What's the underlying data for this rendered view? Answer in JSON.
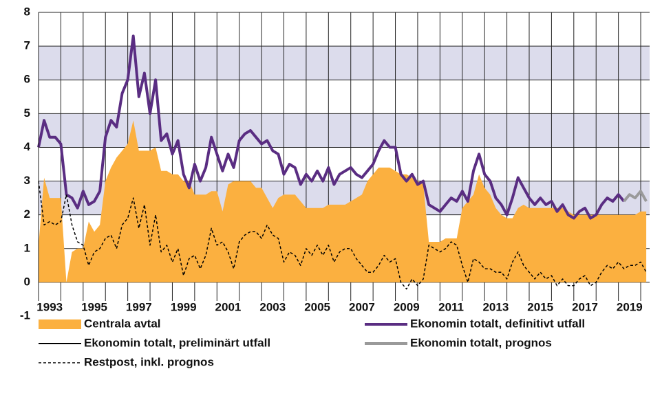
{
  "chart_data": {
    "type": "line",
    "x": [
      1993,
      1993.25,
      1993.5,
      1993.75,
      1994,
      1994.25,
      1994.5,
      1994.75,
      1995,
      1995.25,
      1995.5,
      1995.75,
      1996,
      1996.25,
      1996.5,
      1996.75,
      1997,
      1997.25,
      1997.5,
      1997.75,
      1998,
      1998.25,
      1998.5,
      1998.75,
      1999,
      1999.25,
      1999.5,
      1999.75,
      2000,
      2000.25,
      2000.5,
      2000.75,
      2001,
      2001.25,
      2001.5,
      2001.75,
      2002,
      2002.25,
      2002.5,
      2002.75,
      2003,
      2003.25,
      2003.5,
      2003.75,
      2004,
      2004.25,
      2004.5,
      2004.75,
      2005,
      2005.25,
      2005.5,
      2005.75,
      2006,
      2006.25,
      2006.5,
      2006.75,
      2007,
      2007.25,
      2007.5,
      2007.75,
      2008,
      2008.25,
      2008.5,
      2008.75,
      2009,
      2009.25,
      2009.5,
      2009.75,
      2010,
      2010.25,
      2010.5,
      2010.75,
      2011,
      2011.25,
      2011.5,
      2011.75,
      2012,
      2012.25,
      2012.5,
      2012.75,
      2013,
      2013.25,
      2013.5,
      2013.75,
      2014,
      2014.25,
      2014.5,
      2014.75,
      2015,
      2015.25,
      2015.5,
      2015.75,
      2016,
      2016.25,
      2016.5,
      2016.75,
      2017,
      2017.25,
      2017.5,
      2017.75,
      2018,
      2018.25,
      2018.5,
      2018.75,
      2019,
      2019.25,
      2019.5,
      2019.75,
      2020,
      2020.25
    ],
    "xlim": [
      1993,
      2020.4
    ],
    "xticks": [
      1993,
      1995,
      1997,
      1999,
      2001,
      2003,
      2005,
      2007,
      2009,
      2011,
      2013,
      2015,
      2017,
      2019
    ],
    "xgrid": [
      1993,
      1994,
      1995,
      1996,
      1997,
      1998,
      1999,
      2000,
      2001,
      2002,
      2003,
      2004,
      2005,
      2006,
      2007,
      2008,
      2009,
      2010,
      2011,
      2012,
      2013,
      2014,
      2015,
      2016,
      2017,
      2018,
      2019,
      2020
    ],
    "ylim": [
      -1,
      8
    ],
    "yticks": [
      -1,
      0,
      1,
      2,
      3,
      4,
      5,
      6,
      7,
      8
    ],
    "bands": [
      [
        2,
        3
      ],
      [
        4,
        5
      ],
      [
        6,
        7
      ]
    ],
    "band_color": "#dcdcec",
    "series": [
      {
        "name": "Centrala avtal",
        "color": "#fbb040",
        "kind": "area",
        "values": [
          1.1,
          3.1,
          2.5,
          2.5,
          2.5,
          0.0,
          0.9,
          1.0,
          1.0,
          1.8,
          1.5,
          1.7,
          3.0,
          3.4,
          3.7,
          3.9,
          4.1,
          4.8,
          3.9,
          3.9,
          3.9,
          4.0,
          3.3,
          3.3,
          3.2,
          3.2,
          3.0,
          3.0,
          2.6,
          2.6,
          2.6,
          2.7,
          2.7,
          2.1,
          2.9,
          3.0,
          3.0,
          3.0,
          3.0,
          2.8,
          2.8,
          2.5,
          2.2,
          2.5,
          2.6,
          2.6,
          2.6,
          2.4,
          2.2,
          2.2,
          2.2,
          2.2,
          2.3,
          2.3,
          2.3,
          2.3,
          2.4,
          2.5,
          2.6,
          3.0,
          3.2,
          3.4,
          3.4,
          3.4,
          3.3,
          3.2,
          3.2,
          3.1,
          3.0,
          2.9,
          1.2,
          1.2,
          1.2,
          1.3,
          1.3,
          1.3,
          2.2,
          2.4,
          2.6,
          3.2,
          2.8,
          2.6,
          2.2,
          2.0,
          1.9,
          1.9,
          2.2,
          2.3,
          2.2,
          2.2,
          2.2,
          2.2,
          2.2,
          2.2,
          2.2,
          2.1,
          2.0,
          2.0,
          2.0,
          2.0,
          2.0,
          2.0,
          2.0,
          2.0,
          2.0,
          2.0,
          2.0,
          2.0,
          2.1,
          2.1
        ]
      },
      {
        "name": "Ekonomin totalt, definitivt utfall",
        "color": "#5a2d82",
        "kind": "line",
        "width": 4,
        "values": [
          4.0,
          4.8,
          4.3,
          4.3,
          4.1,
          2.6,
          2.5,
          2.2,
          2.7,
          2.3,
          2.4,
          2.7,
          4.3,
          4.8,
          4.6,
          5.6,
          6.0,
          7.3,
          5.5,
          6.2,
          5.0,
          6.0,
          4.2,
          4.4,
          3.8,
          4.2,
          3.2,
          2.8,
          3.5,
          3.0,
          3.4,
          4.3,
          3.8,
          3.3,
          3.8,
          3.4,
          4.2,
          4.4,
          4.5,
          4.3,
          4.1,
          4.2,
          3.9,
          3.8,
          3.2,
          3.5,
          3.4,
          2.9,
          3.2,
          3.0,
          3.3,
          3.0,
          3.4,
          2.9,
          3.2,
          3.3,
          3.4,
          3.2,
          3.1,
          3.3,
          3.5,
          3.9,
          4.2,
          4.0,
          4.0,
          3.2,
          3.0,
          3.2,
          2.9,
          3.0,
          2.3,
          2.2,
          2.1,
          2.3,
          2.5,
          2.4,
          2.7,
          2.4,
          3.3,
          3.8,
          3.2,
          3.0,
          2.5,
          2.3,
          2.0,
          2.5,
          3.1,
          2.8,
          2.5,
          2.3,
          2.5,
          2.3,
          2.4,
          2.1,
          2.3,
          2.0,
          1.9,
          2.1,
          2.2,
          1.9,
          2.0,
          2.3,
          2.5,
          2.4,
          2.6,
          2.4,
          null,
          null,
          null,
          null
        ]
      },
      {
        "name": "Ekonomin totalt, preliminärt utfall",
        "color": "#000000",
        "kind": "line",
        "width": 2,
        "values": [
          null,
          null,
          null,
          null,
          null,
          null,
          null,
          null,
          null,
          null,
          null,
          null,
          null,
          null,
          null,
          null,
          null,
          null,
          null,
          null,
          null,
          null,
          null,
          null,
          null,
          null,
          null,
          null,
          null,
          null,
          null,
          null,
          null,
          null,
          null,
          null,
          null,
          null,
          null,
          null,
          null,
          null,
          null,
          null,
          null,
          null,
          null,
          null,
          null,
          null,
          null,
          null,
          null,
          null,
          null,
          null,
          null,
          null,
          null,
          null,
          null,
          null,
          null,
          null,
          null,
          null,
          null,
          null,
          null,
          null,
          null,
          null,
          null,
          null,
          null,
          null,
          null,
          null,
          null,
          null,
          null,
          null,
          null,
          null,
          null,
          null,
          null,
          null,
          null,
          null,
          null,
          null,
          null,
          null,
          null,
          null,
          null,
          null,
          null,
          null,
          null,
          null,
          null,
          null,
          null,
          null,
          null,
          null,
          null,
          null
        ]
      },
      {
        "name": "Ekonomin totalt, prognos",
        "color": "#9a9a9a",
        "kind": "line",
        "width": 4,
        "values": [
          null,
          null,
          null,
          null,
          null,
          null,
          null,
          null,
          null,
          null,
          null,
          null,
          null,
          null,
          null,
          null,
          null,
          null,
          null,
          null,
          null,
          null,
          null,
          null,
          null,
          null,
          null,
          null,
          null,
          null,
          null,
          null,
          null,
          null,
          null,
          null,
          null,
          null,
          null,
          null,
          null,
          null,
          null,
          null,
          null,
          null,
          null,
          null,
          null,
          null,
          null,
          null,
          null,
          null,
          null,
          null,
          null,
          null,
          null,
          null,
          null,
          null,
          null,
          null,
          null,
          null,
          null,
          null,
          null,
          null,
          null,
          null,
          null,
          null,
          null,
          null,
          null,
          null,
          null,
          null,
          null,
          null,
          null,
          null,
          null,
          null,
          null,
          null,
          null,
          null,
          null,
          null,
          null,
          null,
          null,
          null,
          null,
          null,
          null,
          null,
          null,
          null,
          null,
          null,
          null,
          2.4,
          2.6,
          2.5,
          2.7,
          2.4
        ]
      },
      {
        "name": "Restpost, inkl. prognos",
        "color": "#000000",
        "kind": "line",
        "width": 1.5,
        "dash": "dashed",
        "values": [
          3.0,
          1.7,
          1.8,
          1.7,
          1.8,
          2.6,
          1.7,
          1.2,
          1.1,
          0.5,
          0.9,
          1.0,
          1.3,
          1.4,
          1.0,
          1.7,
          1.9,
          2.5,
          1.6,
          2.3,
          1.1,
          2.0,
          0.9,
          1.1,
          0.6,
          1.0,
          0.2,
          0.7,
          0.8,
          0.4,
          0.8,
          1.6,
          1.1,
          1.2,
          0.9,
          0.4,
          1.2,
          1.4,
          1.5,
          1.5,
          1.3,
          1.7,
          1.4,
          1.3,
          0.6,
          0.9,
          0.8,
          0.5,
          1.0,
          0.8,
          1.1,
          0.8,
          1.1,
          0.6,
          0.9,
          1.0,
          1.0,
          0.7,
          0.5,
          0.3,
          0.3,
          0.5,
          0.8,
          0.6,
          0.7,
          0.0,
          -0.2,
          0.1,
          -0.1,
          0.1,
          1.1,
          1.0,
          0.9,
          1.0,
          1.2,
          1.1,
          0.5,
          0.0,
          0.7,
          0.6,
          0.4,
          0.4,
          0.3,
          0.3,
          0.1,
          0.6,
          0.9,
          0.5,
          0.3,
          0.1,
          0.3,
          0.1,
          0.2,
          -0.1,
          0.1,
          -0.1,
          -0.1,
          0.1,
          0.2,
          -0.1,
          0.0,
          0.3,
          0.5,
          0.4,
          0.6,
          0.4,
          0.5,
          0.5,
          0.6,
          0.3
        ]
      }
    ]
  }
}
